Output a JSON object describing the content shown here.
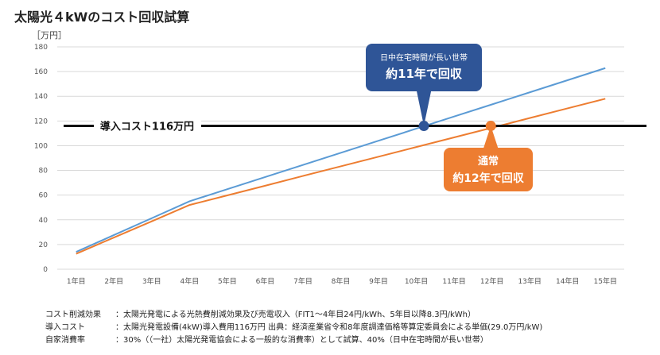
{
  "title": "太陽光４kWのコスト回収試算",
  "chart_data": {
    "type": "line",
    "ylabel": "［万円］",
    "ylim": [
      0,
      180
    ],
    "yticks": [
      0,
      20,
      40,
      60,
      80,
      100,
      120,
      140,
      160,
      180
    ],
    "grid": true,
    "categories": [
      "1年目",
      "2年目",
      "3年目",
      "4年目",
      "5年目",
      "6年目",
      "7年目",
      "8年目",
      "9年目",
      "10年目",
      "11年目",
      "12年目",
      "13年目",
      "14年目",
      "15年目"
    ],
    "series": [
      {
        "color": "#5b9bd5",
        "values": [
          14,
          27.7,
          41.3,
          55,
          64.8,
          74.6,
          84.4,
          94.2,
          104,
          113.8,
          123.6,
          133.4,
          143.2,
          153,
          162.8
        ]
      },
      {
        "color": "#ed7d31",
        "values": [
          12.5,
          25.7,
          38.8,
          52,
          59.8,
          67.6,
          75.5,
          83.3,
          91.1,
          98.9,
          106.7,
          114.5,
          122.4,
          130.2,
          138
        ]
      }
    ],
    "reference_line": {
      "value": 116,
      "label": "導入コスト116万円",
      "color": "#111111"
    },
    "annotations": [
      {
        "line1": "日中在宅時間が長い世帯",
        "line2": "約11年で回収",
        "color": "#2f5597",
        "x": 10.2
      },
      {
        "line1": "通常",
        "line2": "約12年で回収",
        "color": "#ed7d31",
        "x": 11.97
      }
    ]
  },
  "notes": [
    {
      "label": "コスト削減効果",
      "text": "：太陽光発電による光熱費削減効果及び売電収入（FIT1～4年目24円/kWh、5年目以降8.3円/kWh）"
    },
    {
      "label": "導入コスト",
      "text": "：太陽光発電設備(4kW)導入費用116万円 出典：経済産業省令和8年度調達価格等算定委員会による単価(29.0万円/kW)"
    },
    {
      "label": "自家消費率",
      "text": "：30%（（一社）太陽光発電協会による一般的な消費率）として試算、40%（日中在宅時間が長い世帯）"
    }
  ]
}
